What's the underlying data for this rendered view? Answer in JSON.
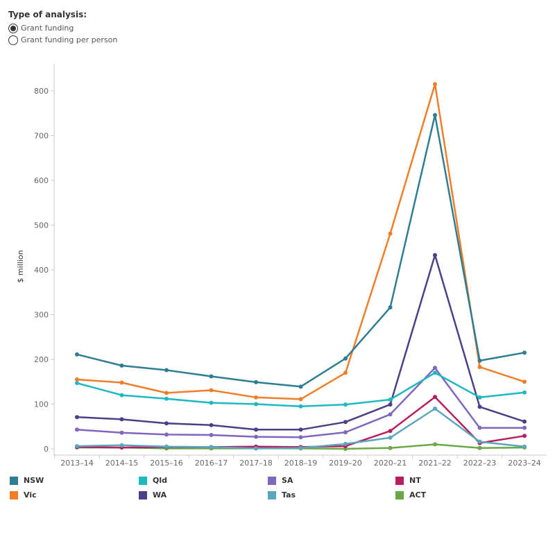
{
  "controls": {
    "title": "Type of analysis:",
    "options": [
      {
        "label": "Grant funding",
        "selected": true
      },
      {
        "label": "Grant funding per person",
        "selected": false
      }
    ]
  },
  "chart_data": {
    "type": "line",
    "title": "",
    "xlabel": "",
    "ylabel": "$ million",
    "ylim": [
      0,
      850
    ],
    "yticks": [
      0,
      100,
      200,
      300,
      400,
      500,
      600,
      700,
      800
    ],
    "categories": [
      "2013–14",
      "2014–15",
      "2015–16",
      "2016–17",
      "2017–18",
      "2018–19",
      "2019–20",
      "2020–21",
      "2021–22",
      "2022–23",
      "2023–24"
    ],
    "grid": false,
    "legend_position": "bottom",
    "series": [
      {
        "name": "NSW",
        "color": "#2e7d92",
        "values": [
          211,
          186,
          176,
          162,
          149,
          139,
          202,
          316,
          746,
          197,
          215
        ]
      },
      {
        "name": "Vic",
        "color": "#f07d27",
        "values": [
          155,
          148,
          125,
          131,
          115,
          111,
          170,
          481,
          815,
          183,
          150
        ]
      },
      {
        "name": "Qld",
        "color": "#1db8c0",
        "values": [
          147,
          120,
          112,
          103,
          100,
          95,
          99,
          110,
          170,
          115,
          126
        ]
      },
      {
        "name": "WA",
        "color": "#4b3f86",
        "values": [
          71,
          66,
          57,
          53,
          43,
          43,
          60,
          99,
          433,
          94,
          61
        ]
      },
      {
        "name": "SA",
        "color": "#7e67bf",
        "values": [
          43,
          36,
          32,
          31,
          27,
          26,
          37,
          77,
          181,
          47,
          47
        ]
      },
      {
        "name": "Tas",
        "color": "#5aa6bd",
        "values": [
          6,
          8,
          5,
          4,
          1,
          2,
          11,
          25,
          90,
          16,
          5
        ]
      },
      {
        "name": "NT",
        "color": "#b71f5e",
        "values": [
          4,
          3,
          4,
          4,
          5,
          4,
          6,
          40,
          116,
          13,
          29
        ]
      },
      {
        "name": "ACT",
        "color": "#6aa847",
        "values": [
          3,
          3,
          1,
          1,
          1,
          1,
          0,
          2,
          10,
          2,
          3
        ]
      }
    ]
  },
  "legend": [
    {
      "name": "NSW",
      "color": "#2e7d92"
    },
    {
      "name": "Vic",
      "color": "#f07d27"
    },
    {
      "name": "Qld",
      "color": "#1db8c0"
    },
    {
      "name": "WA",
      "color": "#4b3f86"
    },
    {
      "name": "SA",
      "color": "#7e67bf"
    },
    {
      "name": "Tas",
      "color": "#5aa6bd"
    },
    {
      "name": "NT",
      "color": "#b71f5e"
    },
    {
      "name": "ACT",
      "color": "#6aa847"
    }
  ]
}
